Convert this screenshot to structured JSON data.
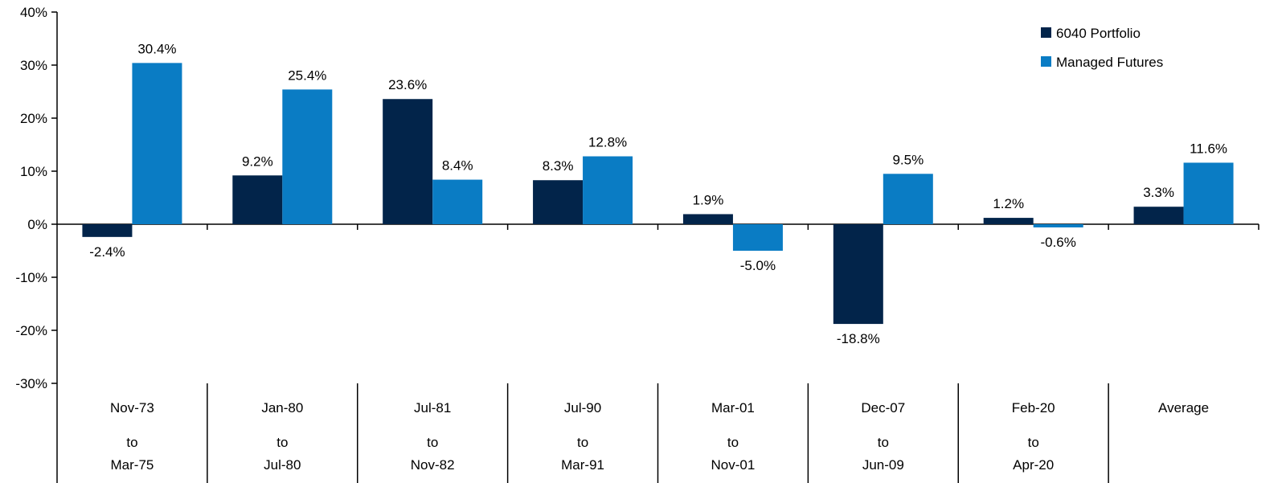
{
  "chart_data": {
    "type": "bar",
    "title": "",
    "xlabel": "",
    "ylabel": "",
    "ylim": [
      -30,
      40
    ],
    "yticks": [
      40,
      30,
      20,
      10,
      0,
      -10,
      -20,
      -30
    ],
    "ytick_labels": [
      "40%",
      "30%",
      "20%",
      "10%",
      "0%",
      "-10%",
      "-20%",
      "-30%"
    ],
    "categories": [
      {
        "start": "Nov-73",
        "to": "to",
        "end": "Mar-75"
      },
      {
        "start": "Jan-80",
        "to": "to",
        "end": "Jul-80"
      },
      {
        "start": "Jul-81",
        "to": "to",
        "end": "Nov-82"
      },
      {
        "start": "Jul-90",
        "to": "to",
        "end": "Mar-91"
      },
      {
        "start": "Mar-01",
        "to": "to",
        "end": "Nov-01"
      },
      {
        "start": "Dec-07",
        "to": "to",
        "end": "Jun-09"
      },
      {
        "start": "Feb-20",
        "to": "to",
        "end": "Apr-20"
      },
      {
        "start": "Average",
        "to": "",
        "end": ""
      }
    ],
    "series": [
      {
        "name": "6040 Portfolio",
        "color": "#02244a",
        "values": [
          -2.4,
          9.2,
          23.6,
          8.3,
          1.9,
          -18.8,
          1.2,
          3.3
        ],
        "labels": [
          "-2.4%",
          "9.2%",
          "23.6%",
          "8.3%",
          "1.9%",
          "-18.8%",
          "1.2%",
          "3.3%"
        ]
      },
      {
        "name": "Managed Futures",
        "color": "#0a7cc4",
        "values": [
          30.4,
          25.4,
          8.4,
          12.8,
          -5.0,
          9.5,
          -0.6,
          11.6
        ],
        "labels": [
          "30.4%",
          "25.4%",
          "8.4%",
          "12.8%",
          "-5.0%",
          "9.5%",
          "-0.6%",
          "11.6%"
        ]
      }
    ],
    "legend": "top-right",
    "grid": false
  }
}
